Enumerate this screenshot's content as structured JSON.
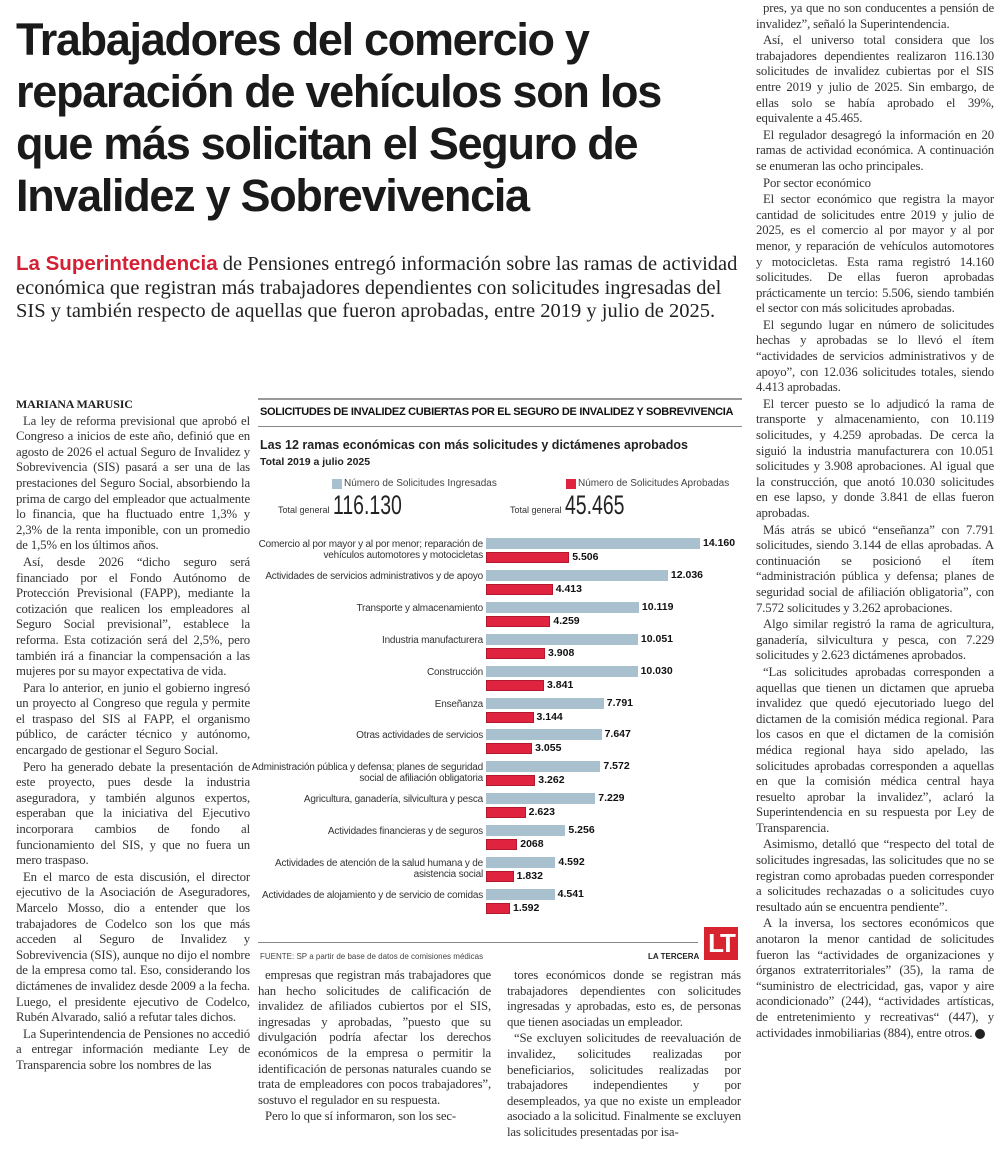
{
  "article": {
    "headline": "Trabajadores del comercio y reparación de vehículos son los que más solicitan el Seguro de Invalidez y Sobrevivencia",
    "lead_highlight": "La Superintendencia",
    "lead_rest": " de Pensiones entregó información sobre las ramas de actividad económica que registran más trabajadores dependientes con solicitudes ingresadas del SIS y también respecto de aquellas que fueron aprobadas, entre 2019 y julio de 2025.",
    "byline": "MARIANA MARUSIC",
    "col_left": [
      "La ley de reforma previsional que aprobó el Congreso a inicios de este año, definió que en agosto de 2026 el actual Seguro de Invalidez y Sobrevivencia (SIS) pasará a ser una de las prestaciones del Seguro Social, absorbiendo la prima de cargo del empleador que actualmente lo financia, que ha fluctuado entre 1,3% y 2,3% de la renta imponible, con un promedio de 1,5% en los últimos años.",
      "Así, desde 2026 “dicho seguro será financiado por el Fondo Autónomo de Protección Previsional (FAPP), mediante la cotización que realicen los empleadores al Seguro Social previsional”, establece la reforma. Esta cotización será del 2,5%, pero también irá a financiar la compensación a las mujeres por su mayor expectativa de vida.",
      "Para lo anterior, en junio el gobierno ingresó un proyecto al Congreso que regula y permite el traspaso del SIS al FAPP, el organismo público, de carácter técnico y autónomo, encargado de gestionar el Seguro Social.",
      "Pero ha generado debate la presentación de este proyecto, pues desde la industria aseguradora, y también algunos expertos, esperaban que la iniciativa del Ejecutivo incorporara cambios de fondo al funcionamiento del SIS, y que no fuera un mero traspaso.",
      "En el marco de esta discusión, el director ejecutivo de la Asociación de Aseguradores, Marcelo Mosso, dio a entender que los trabajadores de Codelco son los que más acceden al Seguro de Invalidez y Sobrevivencia (SIS), aunque no dijo el nombre de la empresa como tal. Eso, considerando los dictámenes de invalidez desde 2009 a la fecha. Luego, el presidente ejecutivo de Codelco, Rubén Alvarado, salió a refutar tales dichos.",
      "La Superintendencia de Pensiones no accedió a entregar información mediante Ley de Transparencia sobre los nombres de las"
    ],
    "col_mid1": [
      "empresas que registran más trabajadores que han hecho solicitudes de calificación de invalidez de afiliados cubiertos por el SIS, ingresadas y aprobadas, ”puesto que su divulgación podría afectar los derechos económicos de la empresa o permitir la identificación de personas naturales cuando se trata de empleadores con pocos trabajadores”, sostuvo el regulador en su respuesta.",
      "Pero lo que sí informaron, son los sec-"
    ],
    "col_mid2": [
      "tores económicos donde se registran más trabajadores dependientes con solicitudes ingresadas y aprobadas, esto es, de personas que tienen asociadas un empleador.",
      "“Se excluyen solicitudes de reevaluación de invalidez, solicitudes realizadas por beneficiarios, solicitudes realizadas por trabajadores independientes y por desempleados, ya que no existe un empleador asociado a la solicitud. Finalmente se excluyen las solicitudes presentadas por isa-"
    ],
    "col_right": [
      "pres, ya que no son conducentes a pensión de invalidez”, señaló la Superintendencia.",
      "Así, el universo total considera que los trabajadores dependientes realizaron 116.130 solicitudes de invalidez cubiertas por el SIS entre 2019 y julio de 2025. Sin embargo, de ellas solo se había aprobado el 39%, equivalente a 45.465.",
      "El regulador desagregó la información en 20 ramas de actividad económica. A continuación se enumeran las ocho principales.",
      "Por sector económico",
      "El sector económico que registra la mayor cantidad de solicitudes entre 2019 y julio de 2025, es el comercio al por mayor y al por menor, y reparación de vehículos automotores y motocicletas. Esta rama registró 14.160 solicitudes. De ellas fueron aprobadas prácticamente un tercio: 5.506, siendo también el sector con más solicitudes aprobadas.",
      "El segundo lugar en número de solicitudes hechas y aprobadas se lo llevó el ítem “actividades de servicios administrativos y de apoyo”, con 12.036 solicitudes totales, siendo 4.413 aprobadas.",
      "El tercer puesto se lo adjudicó la rama de transporte y almacenamiento, con 10.119 solicitudes, y 4.259 aprobadas. De cerca la siguió la industria manufacturera con 10.051 solicitudes y 3.908 aprobaciones. Al igual que la construcción, que anotó 10.030 solicitudes en ese lapso, y donde 3.841 de ellas fueron aprobadas.",
      "Más atrás se ubicó “enseñanza” con 7.791 solicitudes, siendo 3.144 de ellas aprobadas. A continuación se posicionó el ítem “administración pública y defensa; planes de seguridad social de afiliación obligatoria”, con 7.572 solicitudes y 3.262 aprobaciones.",
      "Algo similar registró la rama de agricultura, ganadería, silvicultura y pesca, con 7.229 solicitudes y 2.623 dictámenes aprobados.",
      "“Las solicitudes aprobadas corresponden a aquellas que tienen un dictamen que aprueba invalidez que quedó ejecutoriado luego del dictamen de la comisión médica regional. Para los casos en que el dictamen de la comisión médica regional haya sido apelado, las solicitudes aprobadas corresponden a aquellas en que la comisión médica central haya resuelto aprobar la invalidez”, aclaró la Superintendencia en su respuesta por Ley de Transparencia.",
      "Asimismo, detalló que “respecto del total de solicitudes ingresadas, las solicitudes que no se registran como aprobadas pueden corresponder a solicitudes rechazadas o a solicitudes cuyo resultado aún se encuentra pendiente”.",
      "A la inversa, los sectores económicos que anotaron la menor cantidad de solicitudes fueron las “actividades de organizaciones y órganos extraterritoriales” (35), la rama de “suministro de electricidad, gas, vapor y aire acondicionado” (244), “actividades artísticas, de entretenimiento y recreativas“ (447), y actividades inmobiliarias (884), entre otros."
    ]
  },
  "colors": {
    "accent_red": "#d41f35",
    "bar_ingresadas": "#a9c0cf",
    "bar_aprobadas": "#e0233f",
    "logo_bg": "#d8242f"
  },
  "chart_data": {
    "type": "bar",
    "orientation": "horizontal",
    "title": "SOLICITUDES DE INVALIDEZ CUBIERTAS POR EL SEGURO DE INVALIDEZ Y SOBREVIVENCIA",
    "subtitle": "Las 12 ramas económicas con más solicitudes y dictámenes aprobados",
    "period": "Total 2019 a julio 2025",
    "totals": [
      {
        "label": "Total general",
        "value": "116.130"
      },
      {
        "label": "Total general",
        "value": "45.465"
      }
    ],
    "categories": [
      "Comercio al por mayor y al por menor; reparación de vehículos automotores y motocicletas",
      "Actividades de servicios administrativos y de apoyo",
      "Transporte y almacenamiento",
      "Industria manufacturera",
      "Construcción",
      "Enseñanza",
      "Otras actividades de servicios",
      "Administración pública y defensa; planes de seguridad social de afiliación obligatoria",
      "Agricultura, ganadería, silvicultura y pesca",
      "Actividades financieras y de seguros",
      "Actividades de atención de la salud humana y de asistencia social",
      "Actividades de alojamiento y de servicio de comidas"
    ],
    "series": [
      {
        "name": "Número de Solicitudes Ingresadas",
        "color": "#a9c0cf",
        "values": [
          14160,
          12036,
          10119,
          10051,
          10030,
          7791,
          7647,
          7572,
          7229,
          5256,
          4592,
          4541
        ],
        "labels": [
          "14.160",
          "12.036",
          "10.119",
          "10.051",
          "10.030",
          "7.791",
          "7.647",
          "7.572",
          "7.229",
          "5.256",
          "4.592",
          "4.541"
        ]
      },
      {
        "name": "Número de Solicitudes Aprobadas",
        "color": "#e0233f",
        "values": [
          5506,
          4413,
          4259,
          3908,
          3841,
          3144,
          3055,
          3262,
          2623,
          2068,
          1832,
          1592
        ],
        "labels": [
          "5.506",
          "4.413",
          "4.259",
          "3.908",
          "3.841",
          "3.144",
          "3.055",
          "3.262",
          "2.623",
          "2068",
          "1.832",
          "1.592"
        ]
      }
    ],
    "grid": false,
    "legend": "top",
    "source": "FUENTE: SP a partir de base  de datos de comisiones médicas",
    "brand": "LA TERCERA",
    "logo_text": "LT"
  }
}
